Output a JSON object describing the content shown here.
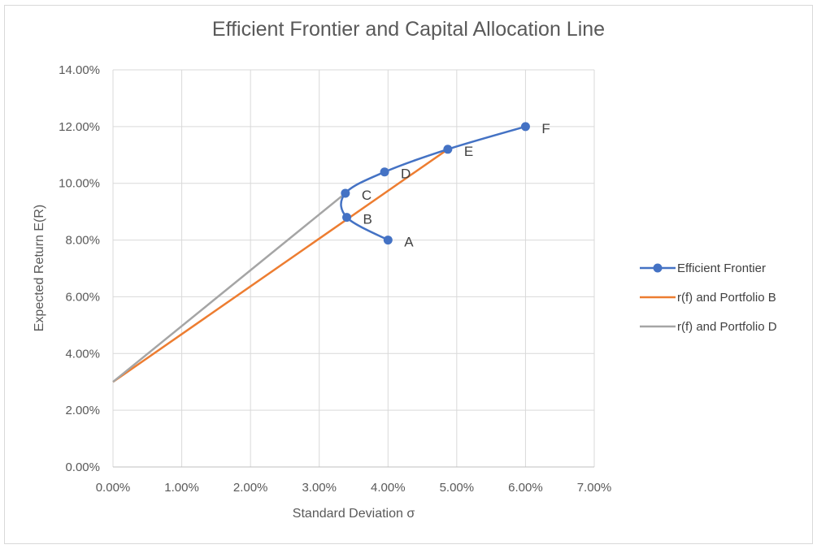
{
  "chart_data": {
    "type": "scatter",
    "title": "Efficient Frontier and Capital Allocation Line",
    "xlabel": "Standard Deviation σ",
    "ylabel": "Expected Return E(R)",
    "xlim": [
      0,
      0.07
    ],
    "ylim": [
      0,
      0.14
    ],
    "x_ticks": [
      0,
      0.01,
      0.02,
      0.03,
      0.04,
      0.05,
      0.06,
      0.07
    ],
    "y_ticks": [
      0,
      0.02,
      0.04,
      0.06,
      0.08,
      0.1,
      0.12,
      0.14
    ],
    "x_tick_labels": [
      "0.00%",
      "1.00%",
      "2.00%",
      "3.00%",
      "4.00%",
      "5.00%",
      "6.00%",
      "7.00%"
    ],
    "y_tick_labels": [
      "0.00%",
      "2.00%",
      "4.00%",
      "6.00%",
      "8.00%",
      "10.00%",
      "12.00%",
      "14.00%"
    ],
    "grid": true,
    "legend_position": "right",
    "series": [
      {
        "name": "Efficient Frontier",
        "color": "#4472c4",
        "markers": true,
        "smooth": true,
        "points": [
          {
            "x": 0.04,
            "y": 0.08,
            "label": "A"
          },
          {
            "x": 0.034,
            "y": 0.088,
            "label": "B"
          },
          {
            "x": 0.0338,
            "y": 0.0965,
            "label": "C"
          },
          {
            "x": 0.0395,
            "y": 0.104,
            "label": "D"
          },
          {
            "x": 0.0487,
            "y": 0.112,
            "label": "E"
          },
          {
            "x": 0.06,
            "y": 0.12,
            "label": "F"
          }
        ]
      },
      {
        "name": "r(f) and Portfolio B",
        "color": "#ed7d31",
        "markers": false,
        "points": [
          {
            "x": 0.0,
            "y": 0.03
          },
          {
            "x": 0.0487,
            "y": 0.112
          }
        ]
      },
      {
        "name": "r(f) and Portfolio D",
        "color": "#a5a5a5",
        "markers": false,
        "points": [
          {
            "x": 0.0,
            "y": 0.03
          },
          {
            "x": 0.0338,
            "y": 0.0965
          }
        ]
      }
    ]
  }
}
